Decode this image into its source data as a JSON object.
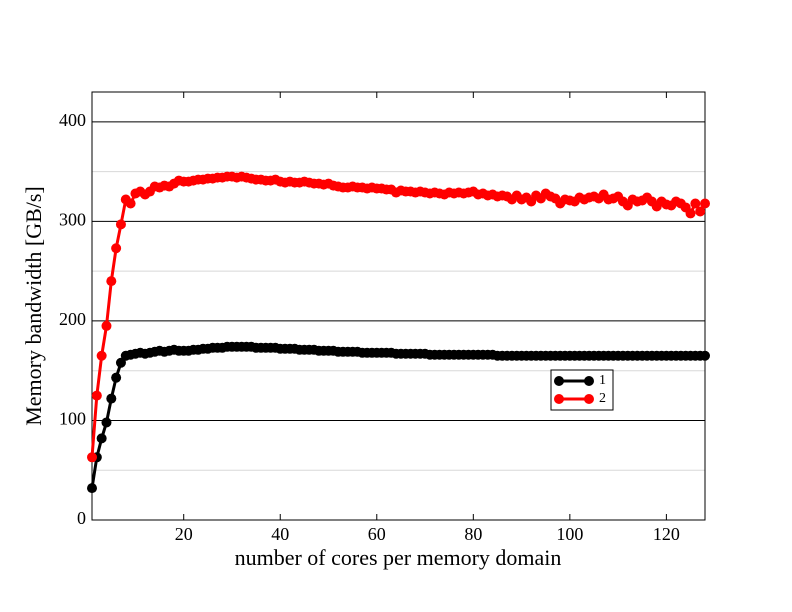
{
  "chart_data": {
    "type": "line",
    "x_label": "number of cores per memory domain",
    "y_label": "Memory bandwidth [GB/s]",
    "x": [
      1,
      2,
      3,
      4,
      5,
      6,
      7,
      8,
      9,
      10,
      11,
      12,
      13,
      14,
      15,
      16,
      17,
      18,
      19,
      20,
      21,
      22,
      23,
      24,
      25,
      26,
      27,
      28,
      29,
      30,
      31,
      32,
      33,
      34,
      35,
      36,
      37,
      38,
      39,
      40,
      41,
      42,
      43,
      44,
      45,
      46,
      47,
      48,
      49,
      50,
      51,
      52,
      53,
      54,
      55,
      56,
      57,
      58,
      59,
      60,
      61,
      62,
      63,
      64,
      65,
      66,
      67,
      68,
      69,
      70,
      71,
      72,
      73,
      74,
      75,
      76,
      77,
      78,
      79,
      80,
      81,
      82,
      83,
      84,
      85,
      86,
      87,
      88,
      89,
      90,
      91,
      92,
      93,
      94,
      95,
      96,
      97,
      98,
      99,
      100,
      101,
      102,
      103,
      104,
      105,
      106,
      107,
      108,
      109,
      110,
      111,
      112,
      113,
      114,
      115,
      116,
      117,
      118,
      119,
      120,
      121,
      122,
      123,
      124,
      125,
      126,
      127,
      128
    ],
    "series": [
      {
        "name": "1",
        "color": "#000000",
        "values": [
          32,
          63,
          82,
          98,
          122,
          143,
          158,
          165,
          166,
          167,
          168,
          167,
          168,
          169,
          170,
          169,
          170,
          171,
          170,
          170,
          170,
          171,
          171,
          172,
          172,
          173,
          173,
          173,
          174,
          174,
          174,
          174,
          174,
          174,
          173,
          173,
          173,
          173,
          173,
          172,
          172,
          172,
          172,
          171,
          171,
          171,
          171,
          170,
          170,
          170,
          170,
          169,
          169,
          169,
          169,
          169,
          168,
          168,
          168,
          168,
          168,
          168,
          168,
          167,
          167,
          167,
          167,
          167,
          167,
          167,
          166,
          166,
          166,
          166,
          166,
          166,
          166,
          166,
          166,
          166,
          166,
          166,
          166,
          166,
          165,
          165,
          165,
          165,
          165,
          165,
          165,
          165,
          165,
          165,
          165,
          165,
          165,
          165,
          165,
          165,
          165,
          165,
          165,
          165,
          165,
          165,
          165,
          165,
          165,
          165,
          165,
          165,
          165,
          165,
          165,
          165,
          165,
          165,
          165,
          165,
          165,
          165,
          165,
          165,
          165,
          165,
          165,
          165
        ]
      },
      {
        "name": "2",
        "color": "#ff0000",
        "values": [
          63,
          125,
          165,
          195,
          240,
          273,
          297,
          322,
          318,
          328,
          330,
          327,
          330,
          335,
          334,
          336,
          335,
          338,
          341,
          340,
          340,
          341,
          342,
          342,
          343,
          343,
          344,
          344,
          345,
          345,
          344,
          345,
          344,
          343,
          342,
          342,
          341,
          341,
          342,
          340,
          339,
          340,
          339,
          339,
          340,
          339,
          338,
          338,
          337,
          338,
          336,
          335,
          334,
          334,
          335,
          334,
          334,
          333,
          334,
          333,
          333,
          332,
          332,
          329,
          331,
          330,
          330,
          329,
          330,
          329,
          328,
          329,
          328,
          327,
          329,
          328,
          329,
          328,
          329,
          330,
          327,
          328,
          326,
          327,
          325,
          326,
          325,
          322,
          326,
          322,
          324,
          320,
          326,
          323,
          328,
          325,
          323,
          318,
          322,
          321,
          320,
          324,
          322,
          324,
          325,
          323,
          327,
          322,
          323,
          325,
          320,
          316,
          322,
          320,
          321,
          324,
          320,
          315,
          320,
          317,
          316,
          320,
          318,
          314,
          308,
          318,
          310,
          318
        ]
      }
    ],
    "xlim": [
      1,
      128
    ],
    "ylim": [
      0,
      430
    ],
    "xticks": [
      20,
      40,
      60,
      80,
      100,
      120
    ],
    "yticks": [
      0,
      100,
      200,
      300,
      400
    ],
    "minor_yticks": [
      50,
      150,
      250,
      350
    ],
    "grid": true,
    "legend_position": "right"
  }
}
